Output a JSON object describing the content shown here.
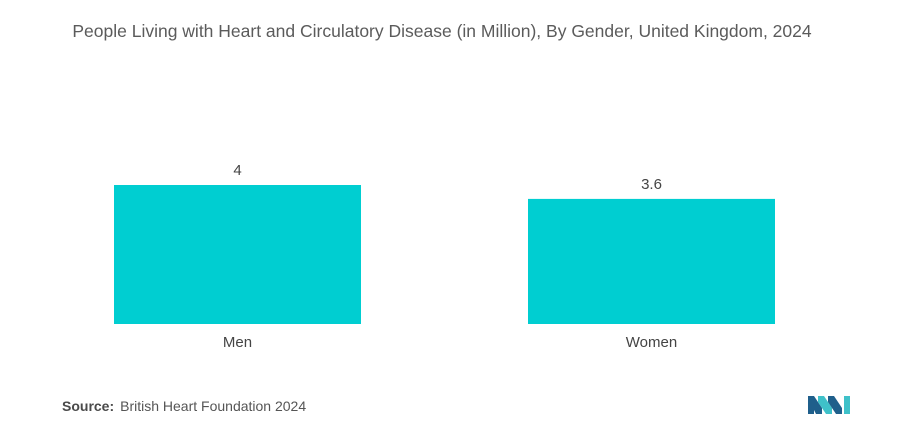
{
  "title": "People Living with Heart and Circulatory Disease (in Million), By Gender, United Kingdom, 2024",
  "source": {
    "label": "Source:",
    "text": "British Heart Foundation 2024"
  },
  "colors": {
    "bar": "#00CED1",
    "text": "#555555",
    "logo_dark": "#1f5f8b",
    "logo_teal": "#3fc1c9"
  },
  "chart_data": {
    "type": "bar",
    "title": "People Living with Heart and Circulatory Disease (in Million), By Gender, United Kingdom, 2024",
    "categories": [
      "Men",
      "Women"
    ],
    "values": [
      4,
      3.6
    ],
    "data_labels": [
      "4",
      "3.6"
    ],
    "xlabel": "",
    "ylabel": "",
    "ylim": [
      0,
      4
    ],
    "grid": false,
    "legend": "none"
  }
}
